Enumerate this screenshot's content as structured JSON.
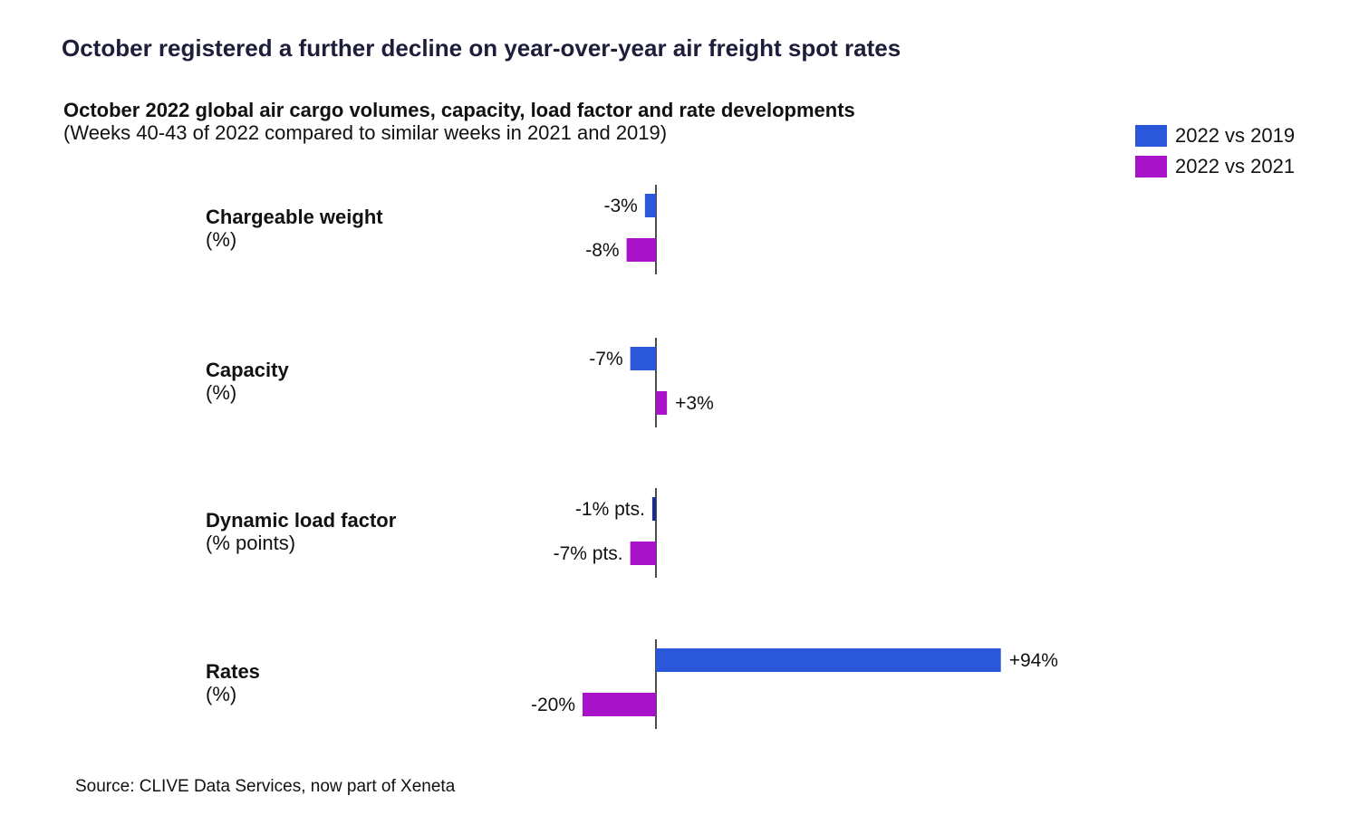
{
  "headline": "October registered a further decline on year-over-year air freight spot rates",
  "subtitle": "October 2022 global air cargo volumes, capacity, load factor and rate developments",
  "subnote": "(Weeks 40-43 of 2022 compared to similar weeks in 2021 and 2019)",
  "source": "Source: CLIVE Data Services, now part of Xeneta",
  "chart_data": {
    "type": "bar",
    "orientation": "horizontal",
    "legend_position": "top-right",
    "grid": false,
    "categories": [
      {
        "title": "Chargeable weight",
        "unit": "(%)"
      },
      {
        "title": "Capacity",
        "unit": "(%)"
      },
      {
        "title": "Dynamic load factor",
        "unit": "(% points)"
      },
      {
        "title": "Rates",
        "unit": "(%)"
      }
    ],
    "series": [
      {
        "name": "2022 vs 2019",
        "color": "#2b57db",
        "values": [
          -3,
          -7,
          -1,
          94
        ],
        "labels": [
          "-3%",
          "-7%",
          "-1% pts.",
          "+94%"
        ]
      },
      {
        "name": "2022 vs 2021",
        "color": "#a812c9",
        "values": [
          -8,
          3,
          -7,
          -20
        ],
        "labels": [
          "-8%",
          "+3%",
          "-7% pts.",
          "-20%"
        ]
      }
    ]
  }
}
